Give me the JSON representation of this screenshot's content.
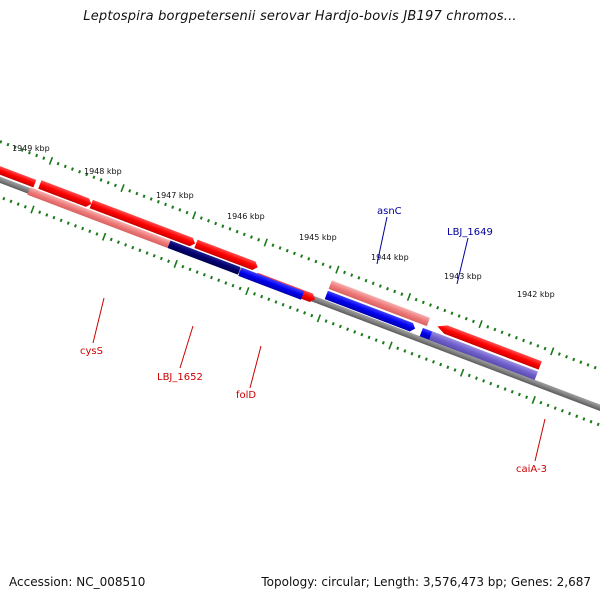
{
  "title": "Leptospira borgpetersenii serovar Hardjo-bovis JB197 chromos...",
  "footer": {
    "accession": "Accession: NC_008510",
    "summary": "Topology: circular; Length: 3,576,473 bp; Genes: 2,687"
  },
  "colors": {
    "backbone": "#808080",
    "tick": "#1a7a1a",
    "forward_gene": "#ff0000",
    "forward_gene_light": "#ee7a7a",
    "reverse_gene": "#0000ee",
    "reverse_gene_dark": "#00006e",
    "reverse_gene_light": "#7060cc",
    "forward_label": "#cc0000",
    "reverse_label": "#00009a"
  },
  "scale_labels": [
    "1949 kbp",
    "1948 kbp",
    "1947 kbp",
    "1946 kbp",
    "1945 kbp",
    "1944 kbp",
    "1943 kbp",
    "1942 kbp"
  ],
  "gene_labels": [
    {
      "name": "cysS",
      "strand": "forward"
    },
    {
      "name": "LBJ_1652",
      "strand": "forward"
    },
    {
      "name": "folD",
      "strand": "forward"
    },
    {
      "name": "asnC",
      "strand": "reverse"
    },
    {
      "name": "LBJ_1649",
      "strand": "reverse"
    },
    {
      "name": "caiA-3",
      "strand": "forward"
    }
  ]
}
